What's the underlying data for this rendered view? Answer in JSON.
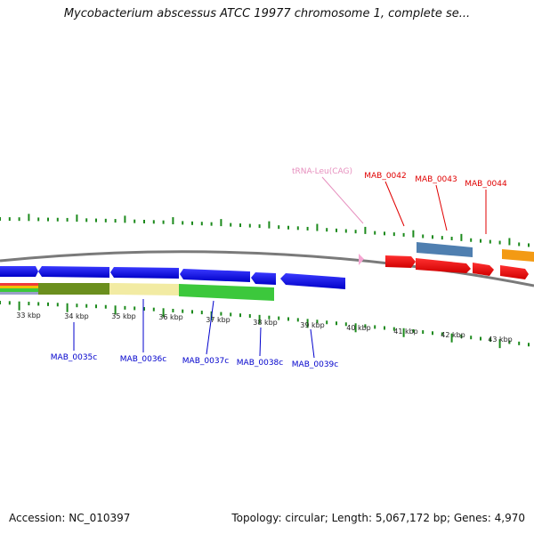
{
  "title": "Mycobacterium abscessus ATCC 19977 chromosome 1, complete se...",
  "footer": {
    "accession": "Accession: NC_010397",
    "summary": "Topology: circular; Length: 5,067,172 bp; Genes: 4,970"
  },
  "kbp_ticks": [
    {
      "label": "33 kbp"
    },
    {
      "label": "34 kbp"
    },
    {
      "label": "35 kbp"
    },
    {
      "label": "36 kbp"
    },
    {
      "label": "37 kbp"
    },
    {
      "label": "38 kbp"
    },
    {
      "label": "39 kbp"
    },
    {
      "label": "40 kbp"
    },
    {
      "label": "41 kbp"
    },
    {
      "label": "42 kbp"
    },
    {
      "label": "43 kbp"
    }
  ],
  "labels_top": [
    {
      "text": "tRNA-Leu(CAG)",
      "color": "#e68fbe"
    },
    {
      "text": "MAB_0042",
      "color": "#e00000"
    },
    {
      "text": "MAB_0043",
      "color": "#e00000"
    },
    {
      "text": "MAB_0044",
      "color": "#e00000"
    }
  ],
  "labels_bottom": [
    {
      "text": "MAB_0035c",
      "color": "#0000cc"
    },
    {
      "text": "MAB_0036c",
      "color": "#0000cc"
    },
    {
      "text": "MAB_0037c",
      "color": "#0000cc"
    },
    {
      "text": "MAB_0038c",
      "color": "#0000cc"
    },
    {
      "text": "MAB_0039c",
      "color": "#0000cc"
    }
  ],
  "colors": {
    "forward_cds": "#ee0000",
    "reverse_cds": "#0000ee",
    "trna": "#f6a6d2",
    "blue_feature": "#4f7fb0",
    "orange_feature": "#f39a14",
    "backbone": "#7a7a7a",
    "tick": "#1c8a1c",
    "olive_band": "#6b8f1e",
    "cream_band": "#f2eba3",
    "green_band": "#3cc83c"
  }
}
